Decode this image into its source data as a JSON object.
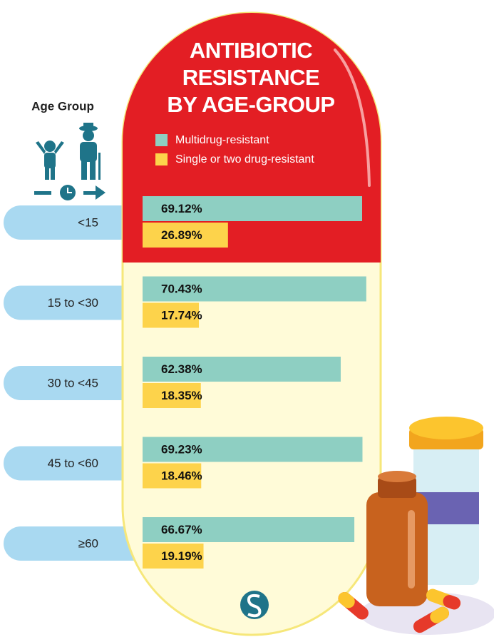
{
  "chart_data": {
    "type": "bar",
    "orientation": "horizontal",
    "title": "ANTIBIOTIC RESISTANCE BY AGE-GROUP",
    "category_label": "Age Group",
    "categories": [
      "<15",
      "15 to <30",
      "30 to <45",
      "45 to <60",
      "≥60"
    ],
    "series": [
      {
        "name": "Multidrug-resistant",
        "color": "#8ecfc2",
        "values": [
          69.12,
          70.43,
          62.38,
          69.23,
          66.67
        ],
        "value_labels": [
          "69.12%",
          "70.43%",
          "62.38%",
          "69.23%",
          "66.67%"
        ]
      },
      {
        "name": "Single or two drug-resistant",
        "color": "#fdd34b",
        "values": [
          26.89,
          17.74,
          18.35,
          18.46,
          19.19
        ],
        "value_labels": [
          "26.89%",
          "17.74%",
          "18.35%",
          "18.46%",
          "19.19%"
        ]
      }
    ]
  }
}
